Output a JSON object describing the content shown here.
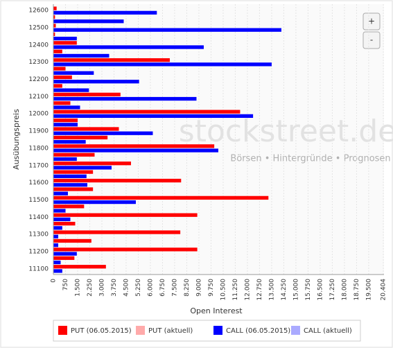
{
  "chart_data": {
    "type": "hbar",
    "x_label": "Open Interest",
    "y_label": "Ausübungspreis",
    "annotations": [
      "stockstreet.de",
      "Börsen • Hintergründe • Prognosen"
    ],
    "buttons": [
      "+",
      "-"
    ],
    "categories": [
      "12600",
      null,
      "12500",
      null,
      "12400",
      null,
      "12300",
      null,
      "12200",
      null,
      "12100",
      null,
      "12000",
      null,
      "11900",
      null,
      "11800",
      null,
      "11700",
      null,
      "11600",
      null,
      "11500",
      null,
      "11400",
      null,
      "11300",
      null,
      "11200",
      null,
      "11100"
    ],
    "series": [
      {
        "name": "PUT (06.05.2015)",
        "color": "#ff0000",
        "values": [
          200,
          100,
          150,
          100,
          1450,
          550,
          7200,
          750,
          1150,
          550,
          4150,
          1050,
          11550,
          1500,
          4050,
          3350,
          9950,
          2550,
          4800,
          2450,
          7900,
          2450,
          13300,
          1900,
          8900,
          1350,
          7850,
          2350,
          8900,
          1300,
          3250
        ]
      },
      {
        "name": "PUT (aktuell)",
        "color": "#ffaaaa",
        "values": [
          null,
          null,
          null,
          null,
          null,
          null,
          null,
          null,
          null,
          null,
          null,
          null,
          null,
          null,
          null,
          null,
          null,
          null,
          null,
          null,
          null,
          null,
          null,
          null,
          null,
          null,
          null,
          null,
          null,
          null,
          null
        ]
      },
      {
        "name": "CALL (06.05.2015)",
        "color": "#0000ff",
        "values": [
          6400,
          4350,
          14100,
          1450,
          9300,
          3450,
          13500,
          2500,
          5300,
          2200,
          8850,
          1650,
          12350,
          1500,
          6150,
          2000,
          10200,
          1450,
          3600,
          2050,
          2100,
          900,
          5100,
          750,
          1050,
          550,
          300,
          300,
          1450,
          450,
          550
        ]
      },
      {
        "name": "CALL (aktuell)",
        "color": "#aaaaff",
        "values": [
          null,
          null,
          null,
          null,
          null,
          null,
          null,
          null,
          null,
          null,
          null,
          null,
          null,
          null,
          null,
          null,
          null,
          null,
          null,
          null,
          null,
          null,
          null,
          null,
          null,
          null,
          null,
          null,
          null,
          null,
          null
        ]
      }
    ],
    "xlim": [
      0,
      20404
    ],
    "xticks": [
      0,
      750,
      {
        "value": 1500,
        "label": "1.500"
      },
      {
        "value": 2250,
        "label": "2.250"
      },
      {
        "value": 3000,
        "label": "3.000"
      },
      {
        "value": 3750,
        "label": "3.750"
      },
      {
        "value": 4500,
        "label": "4.500"
      },
      {
        "value": 5250,
        "label": "5.250"
      },
      {
        "value": 6000,
        "label": "6.000"
      },
      {
        "value": 6750,
        "label": "6.750"
      },
      {
        "value": 7500,
        "label": "7.500"
      },
      {
        "value": 8250,
        "label": "8.250"
      },
      {
        "value": 9000,
        "label": "9.000"
      },
      {
        "value": 9750,
        "label": "9.750"
      },
      {
        "value": 10500,
        "label": "10.500"
      },
      {
        "value": 11250,
        "label": "11.250"
      },
      {
        "value": 12000,
        "label": "12.000"
      },
      {
        "value": 12750,
        "label": "12.750"
      },
      {
        "value": 13500,
        "label": "13.500"
      },
      {
        "value": 14250,
        "label": "14.250"
      },
      {
        "value": 15000,
        "label": "15.000"
      },
      {
        "value": 15750,
        "label": "15.750"
      },
      {
        "value": 16500,
        "label": "16.500"
      },
      {
        "value": 17250,
        "label": "17.250"
      },
      {
        "value": 18000,
        "label": "18.000"
      },
      {
        "value": 18750,
        "label": "18.750"
      },
      {
        "value": 19500,
        "label": "19.500"
      },
      {
        "value": 20404,
        "label": "20.404"
      }
    ],
    "grid": true
  }
}
